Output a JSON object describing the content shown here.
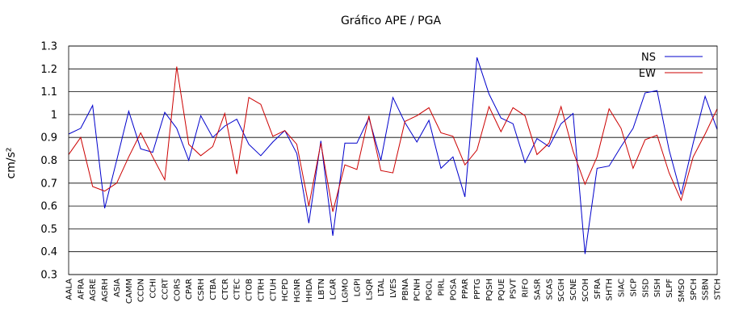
{
  "chart_data": {
    "type": "line",
    "title": "Gráfico  APE / PGA",
    "xlabel": "",
    "ylabel": "cm/s²",
    "ylim": [
      0.3,
      1.3
    ],
    "yticks": [
      "0.3",
      "0.4",
      "0.5",
      "0.6",
      "0.7",
      "0.8",
      "0.9",
      "1",
      "1.1",
      "1.2",
      "1.3"
    ],
    "grid": "horizontal",
    "legend_position": "top-right",
    "categories": [
      "AALA",
      "AFRA",
      "AGRE",
      "AGRH",
      "ASIA",
      "CAMM",
      "CCDN",
      "CCHI",
      "CCRT",
      "CORS",
      "CPAR",
      "CSRH",
      "CTBA",
      "CTCR",
      "CTEC",
      "CTOB",
      "CTRH",
      "CTUH",
      "HCPD",
      "HGNR",
      "HHDA",
      "LBTN",
      "LCAR",
      "LGMO",
      "LGPI",
      "LSQR",
      "LTAL",
      "LVES",
      "PBNA",
      "PCNH",
      "PGOL",
      "PIRL",
      "POSA",
      "PPAR",
      "PPTG",
      "PQSH",
      "PQUE",
      "PSVT",
      "RIFO",
      "SASR",
      "SCAS",
      "SCGH",
      "SCNE",
      "SCOH",
      "SFRA",
      "SHTH",
      "SIAC",
      "SICP",
      "SISD",
      "SISH",
      "SLPF",
      "SMSO",
      "SPCH",
      "SSBN",
      "STCH"
    ],
    "series": [
      {
        "name": "NS",
        "color": "#0000cc",
        "values": [
          0.915,
          0.94,
          1.04,
          0.59,
          0.8,
          1.015,
          0.85,
          0.835,
          1.01,
          0.94,
          0.8,
          0.995,
          0.9,
          0.95,
          0.98,
          0.87,
          0.82,
          0.88,
          0.93,
          0.83,
          0.525,
          0.885,
          0.47,
          0.875,
          0.875,
          0.985,
          0.8,
          1.075,
          0.965,
          0.88,
          0.975,
          0.765,
          0.815,
          0.64,
          1.25,
          1.09,
          0.985,
          0.96,
          0.79,
          0.895,
          0.86,
          0.96,
          1.005,
          0.39,
          0.765,
          0.775,
          0.86,
          0.94,
          1.095,
          1.105,
          0.845,
          0.65,
          0.875,
          1.08,
          0.935
        ]
      },
      {
        "name": "EW",
        "color": "#cc0000",
        "values": [
          0.825,
          0.9,
          0.685,
          0.665,
          0.7,
          0.815,
          0.92,
          0.815,
          0.715,
          1.21,
          0.87,
          0.82,
          0.86,
          1.005,
          0.74,
          1.075,
          1.045,
          0.905,
          0.93,
          0.87,
          0.6,
          0.875,
          0.575,
          0.78,
          0.76,
          0.995,
          0.755,
          0.745,
          0.97,
          0.995,
          1.03,
          0.92,
          0.905,
          0.78,
          0.845,
          1.035,
          0.925,
          1.03,
          0.995,
          0.825,
          0.875,
          1.035,
          0.84,
          0.695,
          0.815,
          1.025,
          0.94,
          0.765,
          0.89,
          0.91,
          0.745,
          0.625,
          0.815,
          0.915,
          1.025
        ]
      }
    ]
  }
}
